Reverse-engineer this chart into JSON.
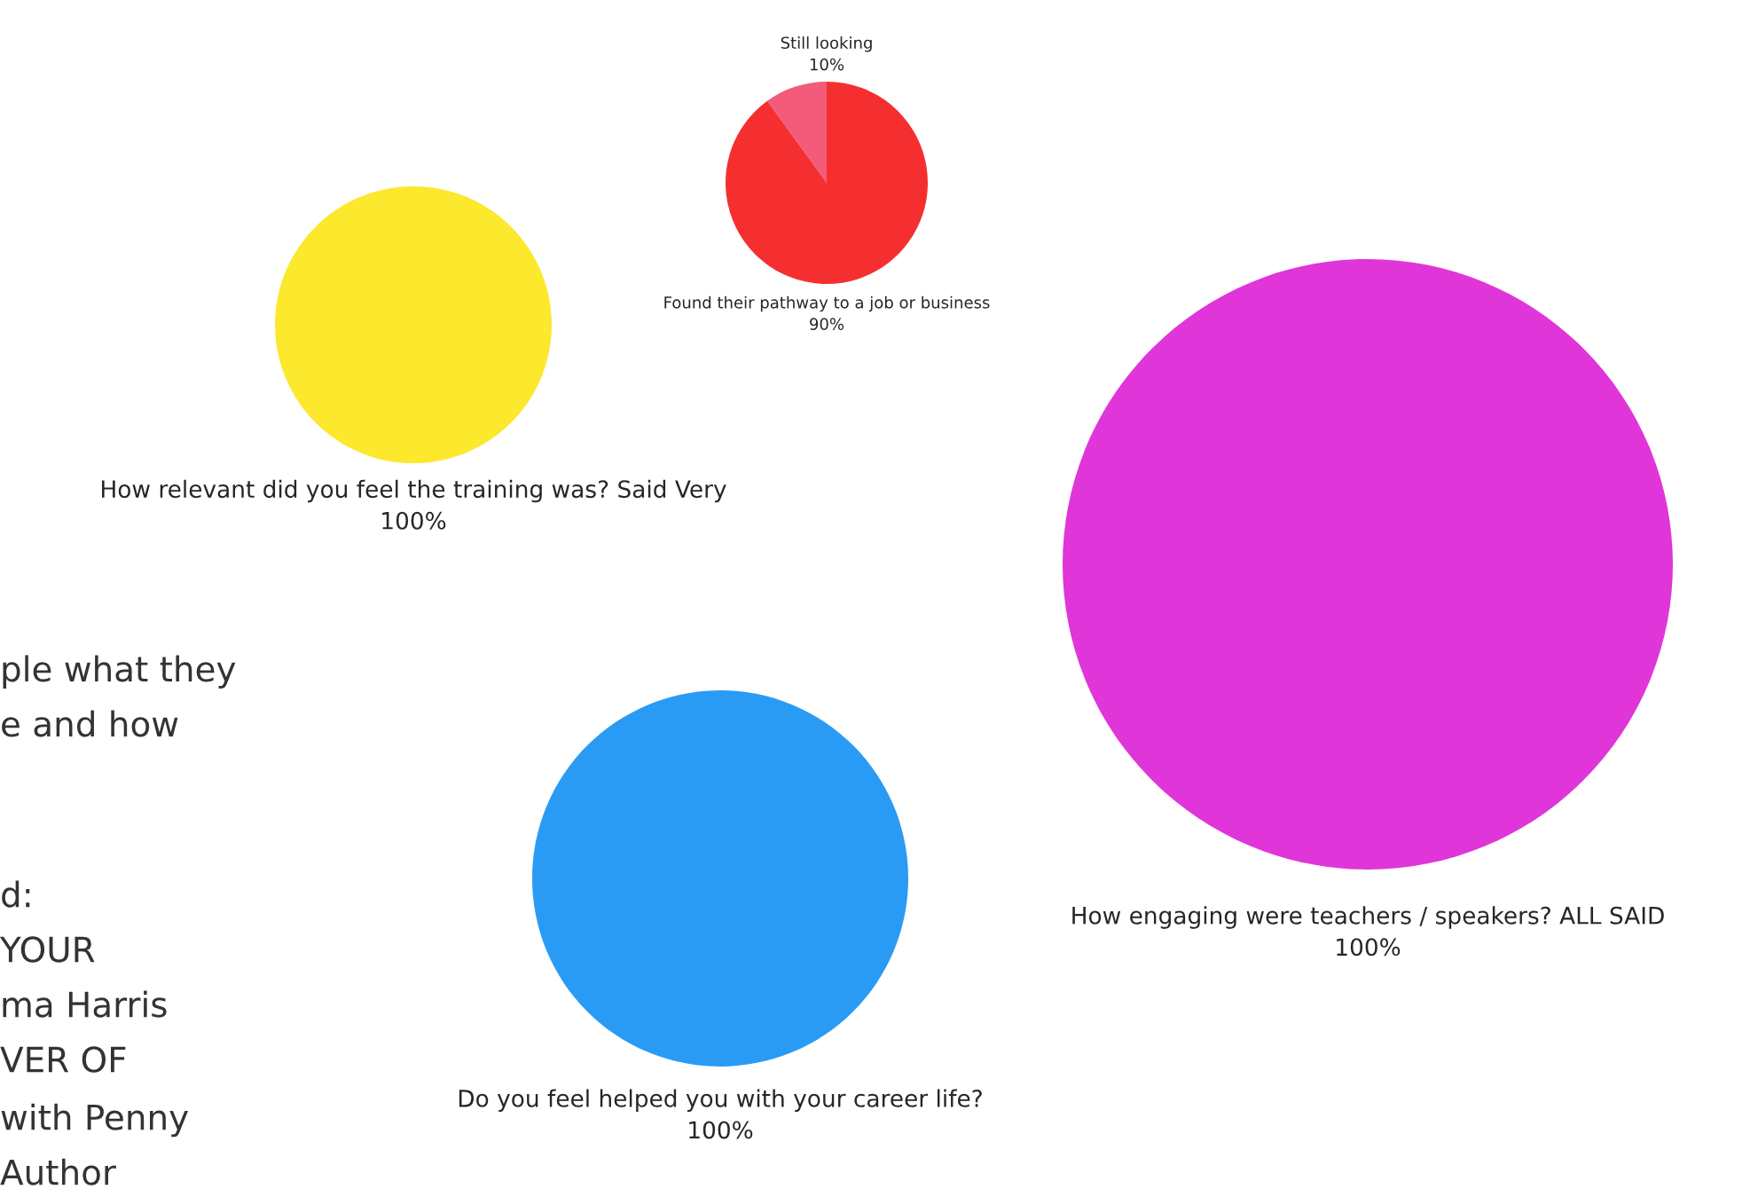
{
  "chart_data": [
    {
      "type": "pie",
      "categories": [
        "Still looking",
        "Found their pathway to a job or business"
      ],
      "values": [
        10,
        90
      ],
      "colors": [
        "#f35b7b",
        "#f52f2f"
      ],
      "value_labels": [
        "10%",
        "90%"
      ]
    },
    {
      "type": "pie",
      "categories": [
        "How engaging were teachers / speakers? ALL SAID"
      ],
      "values": [
        100
      ],
      "colors": [
        "#e035d9"
      ],
      "value_labels": [
        "100%"
      ]
    },
    {
      "type": "pie",
      "categories": [
        "How relevant did you feel the training was? Said Very"
      ],
      "values": [
        100
      ],
      "colors": [
        "#fce82c"
      ],
      "value_labels": [
        "100%"
      ]
    },
    {
      "type": "pie",
      "categories": [
        "Do you feel helped you with your career life?"
      ],
      "values": [
        100
      ],
      "colors": [
        "#2a9bf4"
      ],
      "value_labels": [
        "100%"
      ]
    },
    {
      "type": "other",
      "annotations": [
        "ple what they",
        "e and how",
        "d:",
        "YOUR",
        "ma Harris",
        "VER OF",
        "with Penny",
        "Author"
      ]
    }
  ]
}
